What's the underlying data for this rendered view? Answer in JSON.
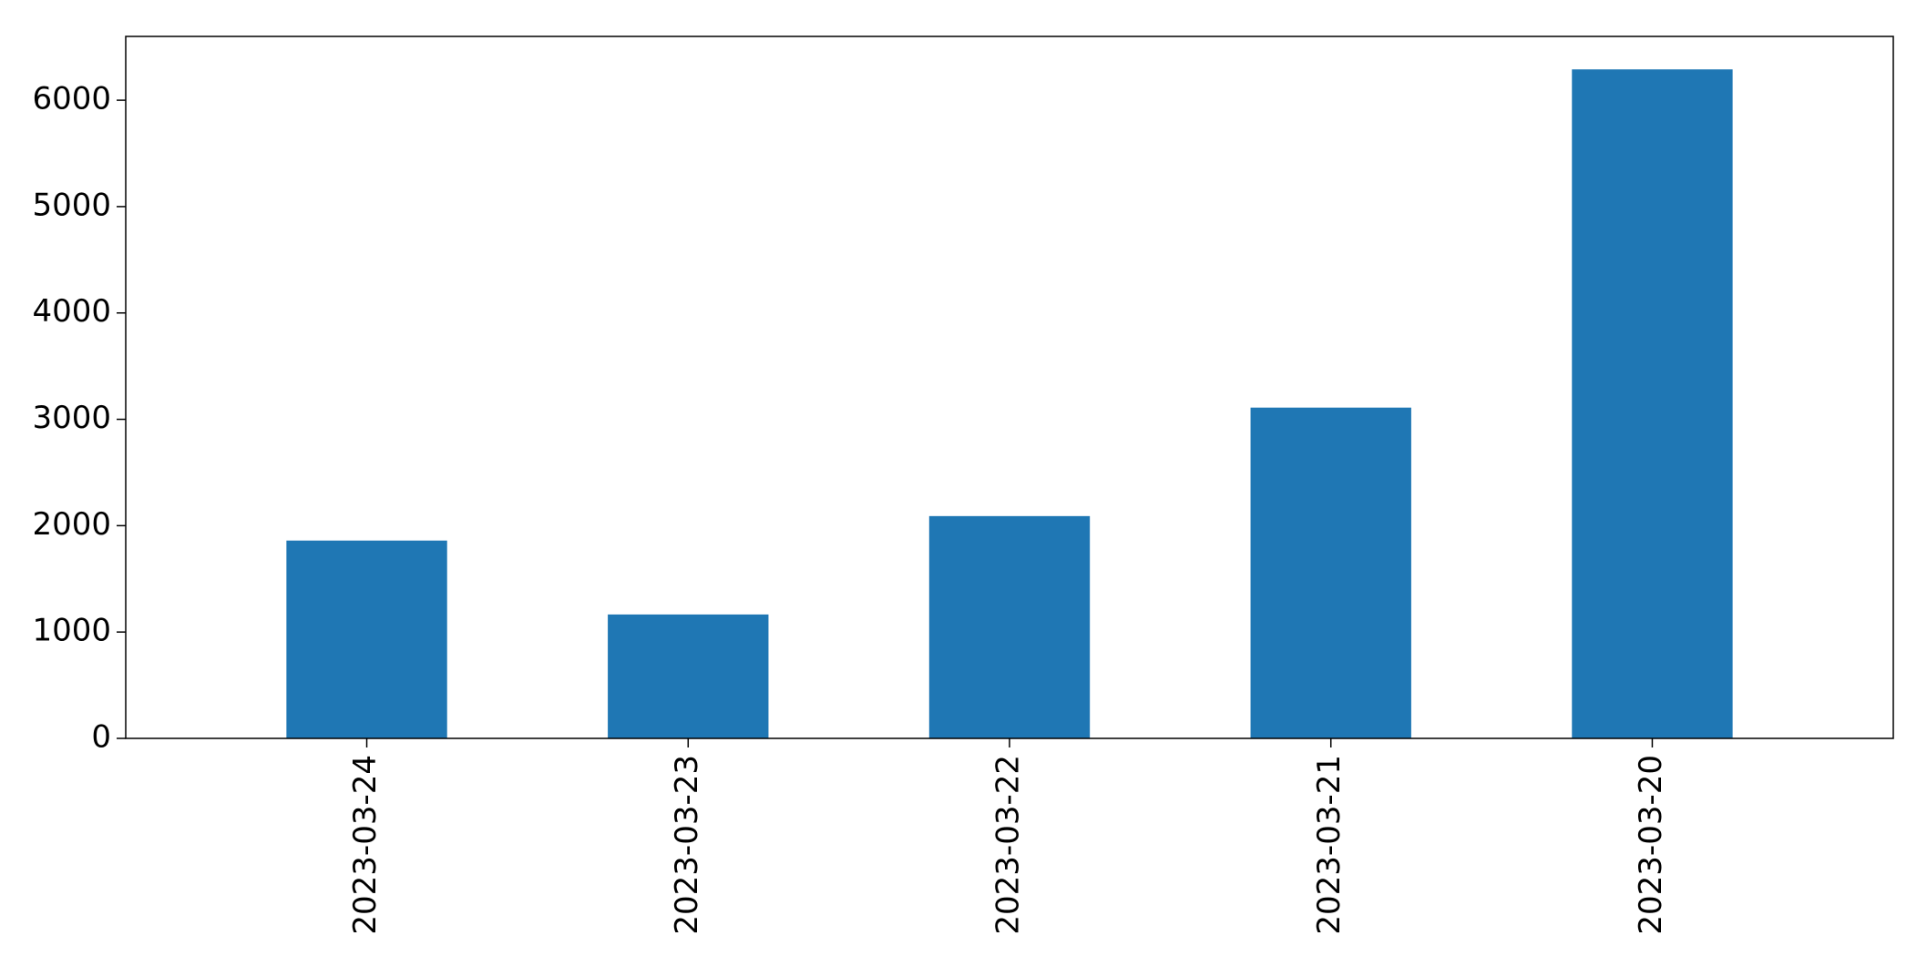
{
  "chart_data": {
    "type": "bar",
    "title": "",
    "xlabel": "",
    "ylabel": "",
    "categories": [
      "2023-03-24",
      "2023-03-23",
      "2023-03-22",
      "2023-03-21",
      "2023-03-20"
    ],
    "values": [
      1860,
      1165,
      2090,
      3110,
      6290
    ],
    "ylim": [
      0,
      6600
    ],
    "yticks": [
      0,
      1000,
      2000,
      3000,
      4000,
      5000,
      6000
    ],
    "ytick_labels": [
      "0",
      "1000",
      "2000",
      "3000",
      "4000",
      "5000",
      "6000"
    ],
    "grid": false,
    "legend": "none",
    "colors": {
      "bar": "#1f77b4",
      "axis": "#000000",
      "background": "#ffffff"
    }
  }
}
